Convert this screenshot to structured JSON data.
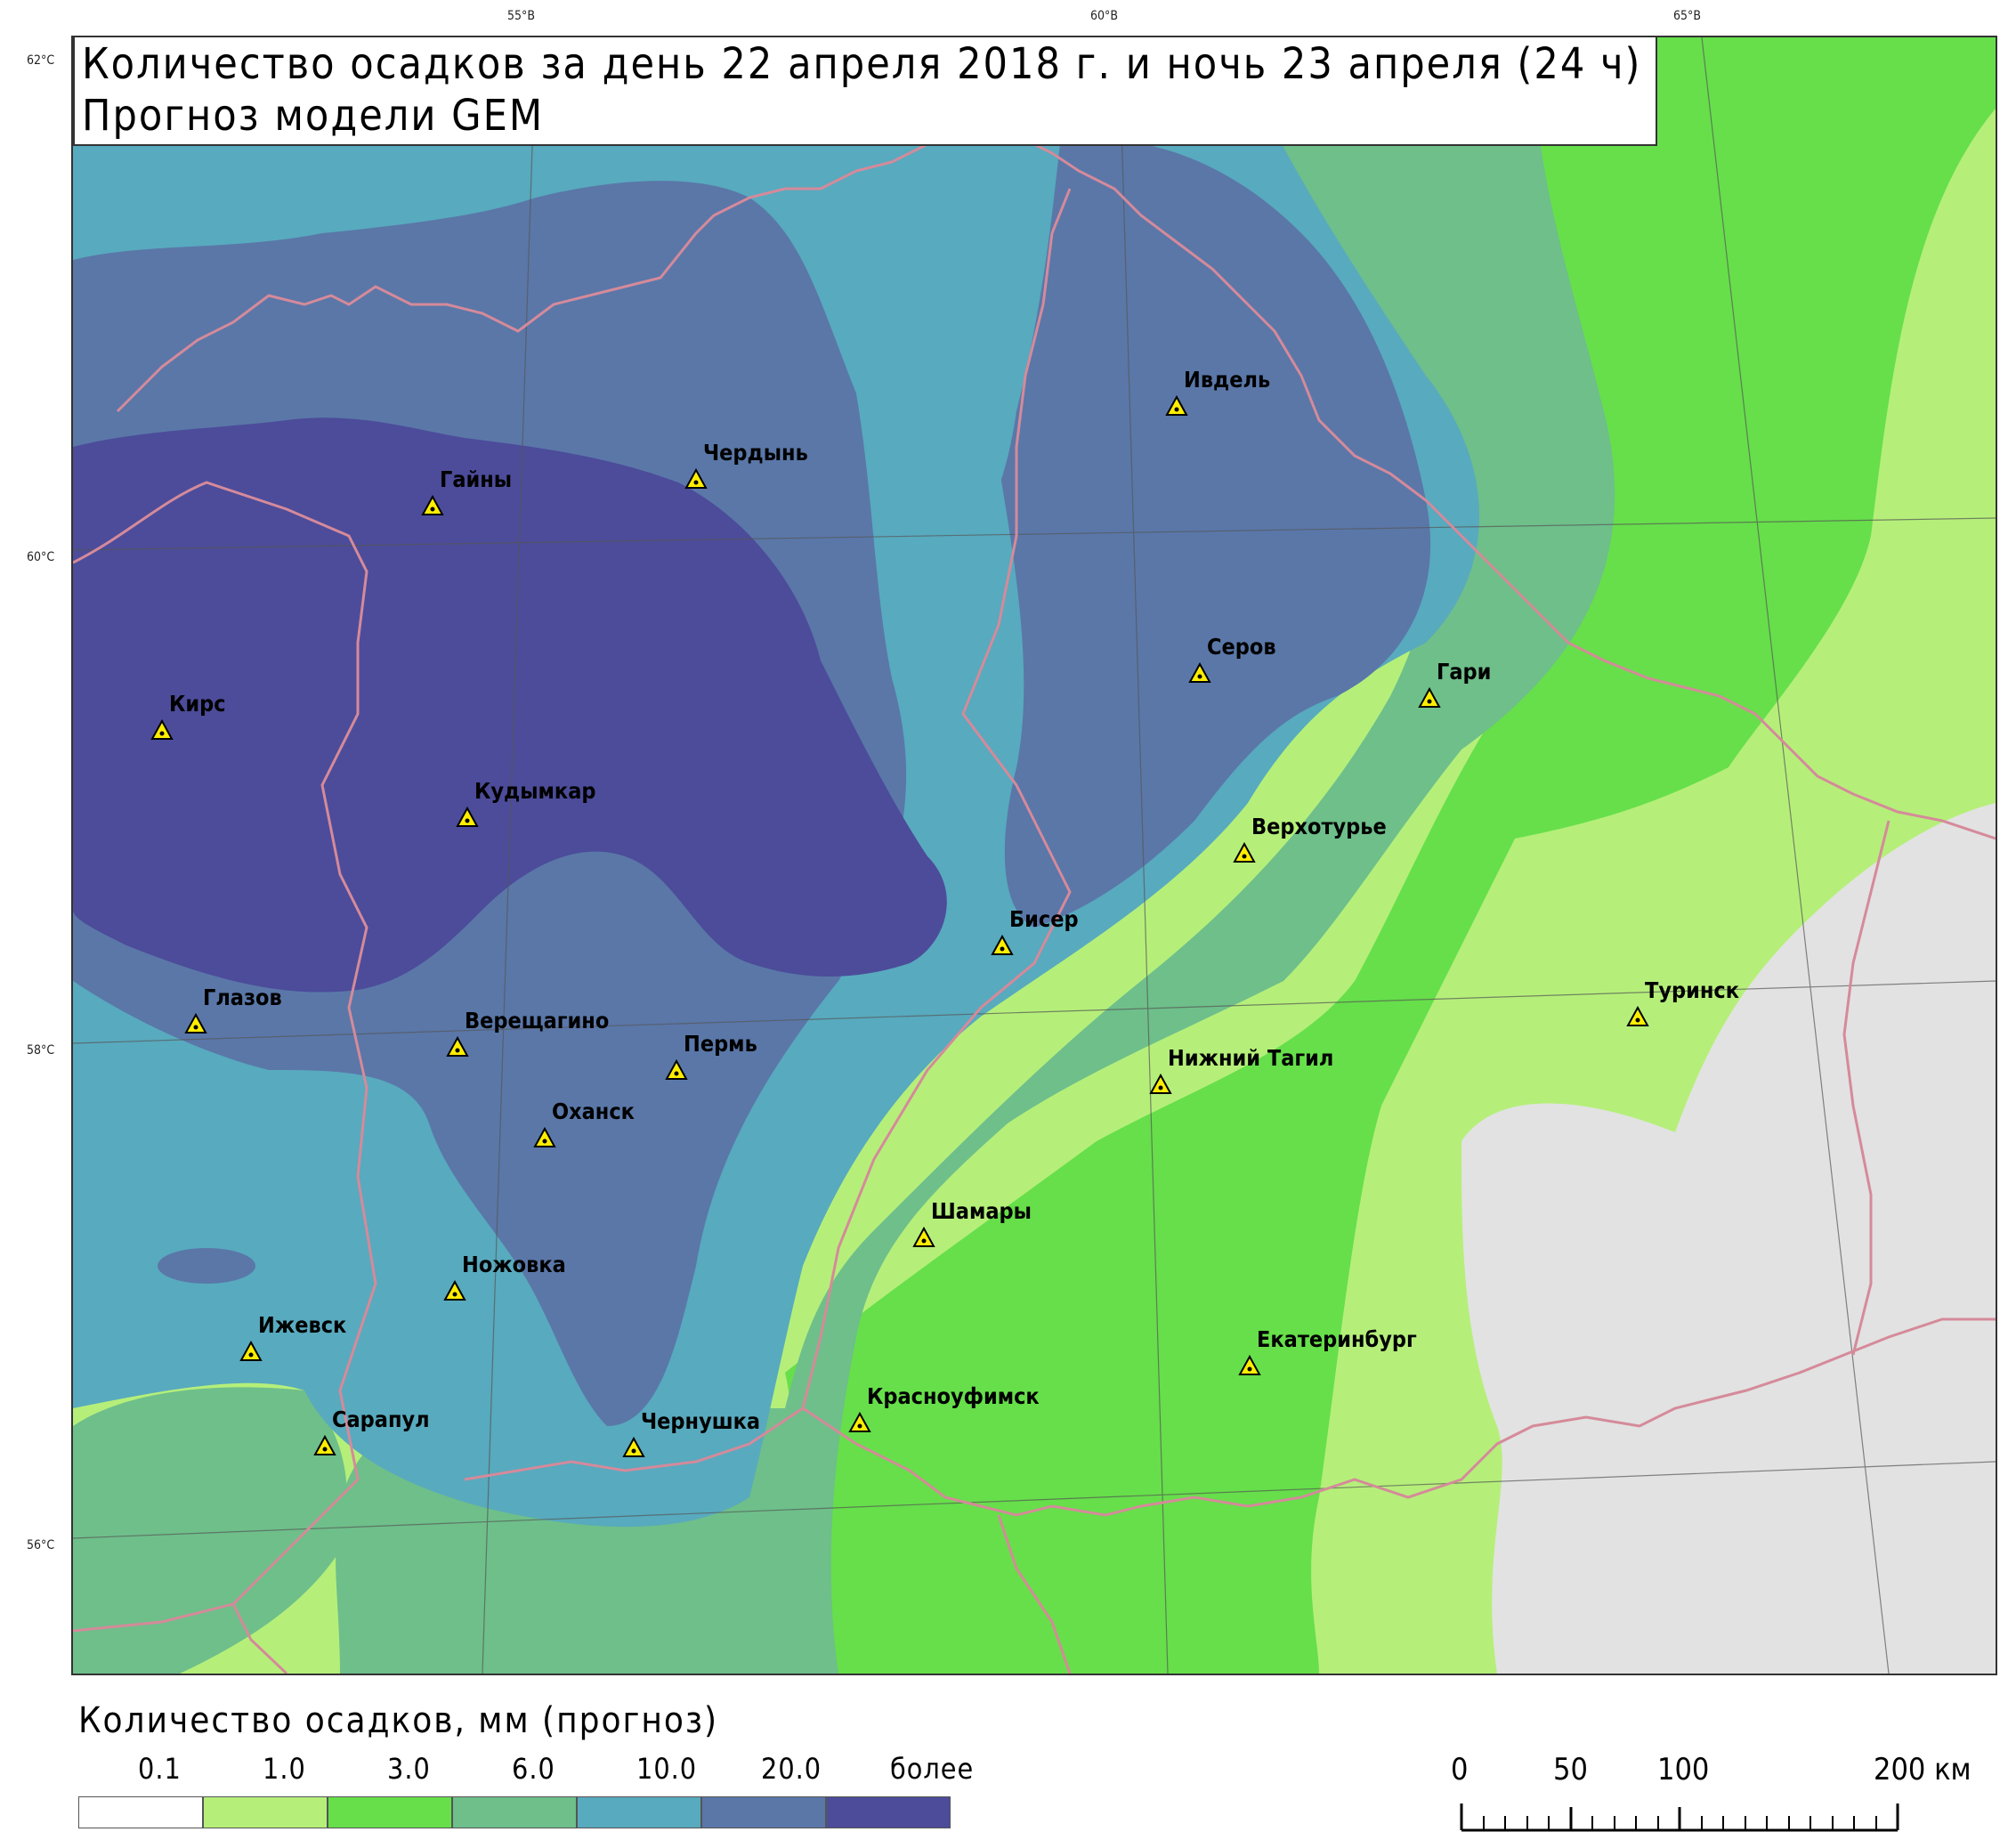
{
  "title": {
    "line1": "Количество осадков за день 22 апреля  2018 г. и ночь 23 апреля  (24 ч)",
    "line2": "Прогноз модели GEM"
  },
  "graticule": {
    "lon_labels": [
      "55°В",
      "60°В",
      "65°В"
    ],
    "lat_labels": [
      "62°С",
      "60°С",
      "58°С",
      "56°С"
    ]
  },
  "cities": [
    "Ивдель",
    "Чердынь",
    "Гайны",
    "Серов",
    "Гари",
    "Кирс",
    "Кудымкар",
    "Верхотурье",
    "Бисер",
    "Туринск",
    "Глазов",
    "Верещагино",
    "Пермь",
    "Нижний Тагил",
    "Оханск",
    "Шамары",
    "Ножовка",
    "Ижевск",
    "Екатеринбург",
    "Красноуфимск",
    "Сарапул",
    "Чернушка"
  ],
  "legend": {
    "title": "Количество осадков, мм (прогноз)",
    "labels": [
      "0.1",
      "1.0",
      "3.0",
      "6.0",
      "10.0",
      "20.0",
      "более"
    ],
    "colors": [
      "#ffffff",
      "#b5ef7a",
      "#66df4a",
      "#6ebf8a",
      "#58aabe",
      "#5a77a8",
      "#4c4c9a"
    ]
  },
  "scale_bar": {
    "labels": [
      "0",
      "50",
      "100",
      "200 км"
    ]
  }
}
